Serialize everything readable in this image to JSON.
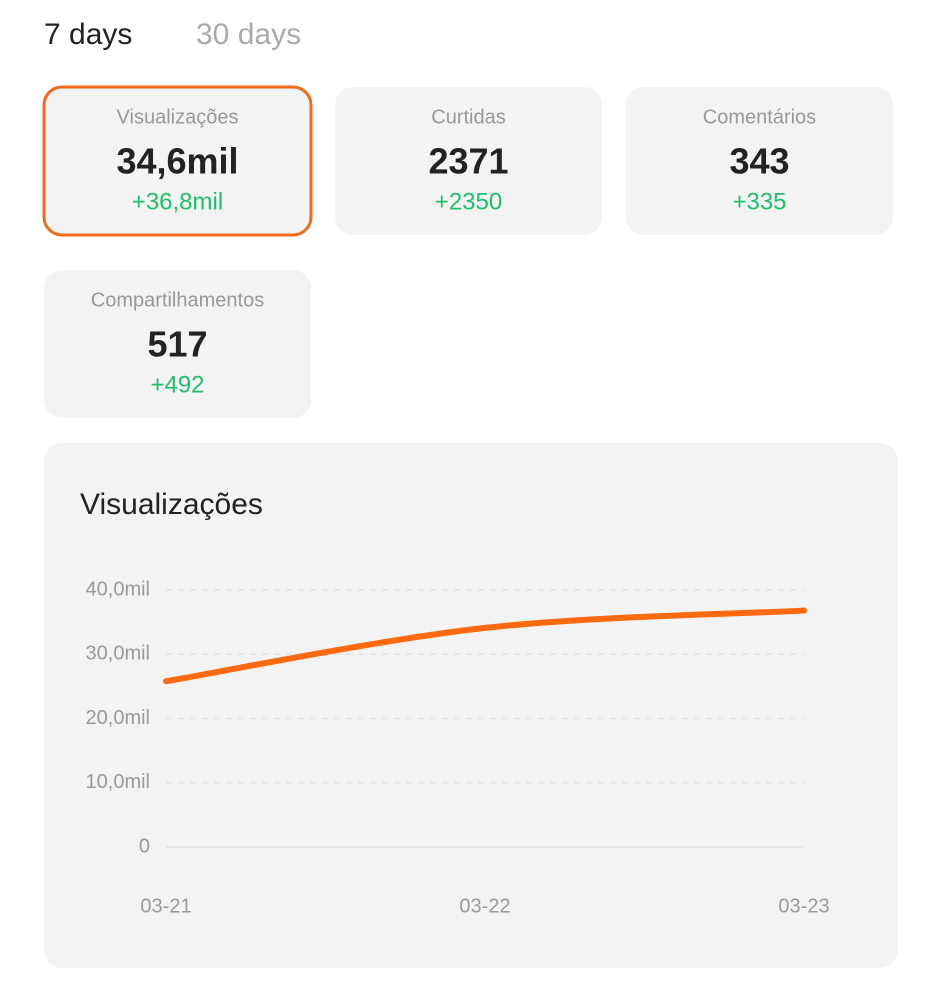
{
  "tabs": [
    "7 days",
    "30 days"
  ],
  "cards": [
    {
      "label": "Visualizações",
      "value": "34,6mil",
      "delta": "+36,8mil"
    },
    {
      "label": "Curtidas",
      "value": "2371",
      "delta": "+2350"
    },
    {
      "label": "Comentários",
      "value": "343",
      "delta": "+335"
    },
    {
      "label": "Compartilhamentos",
      "value": "517",
      "delta": "+492"
    }
  ],
  "chart_data": {
    "type": "line",
    "title": "Visualizações",
    "categories": [
      "03-21",
      "03-22",
      "03-23"
    ],
    "series": [
      {
        "name": "Visualizações",
        "color": "#fb6a10",
        "values": [
          25800,
          34100,
          36800
        ]
      }
    ],
    "ylim": [
      0,
      40000
    ],
    "yticks": [
      0,
      {
        "value": 10000,
        "label": "10,0mil"
      },
      {
        "value": 20000,
        "label": "20,0mil"
      },
      {
        "value": 30000,
        "label": "30,0mil"
      },
      {
        "value": 40000,
        "label": "40,0mil"
      }
    ],
    "grid": true
  }
}
